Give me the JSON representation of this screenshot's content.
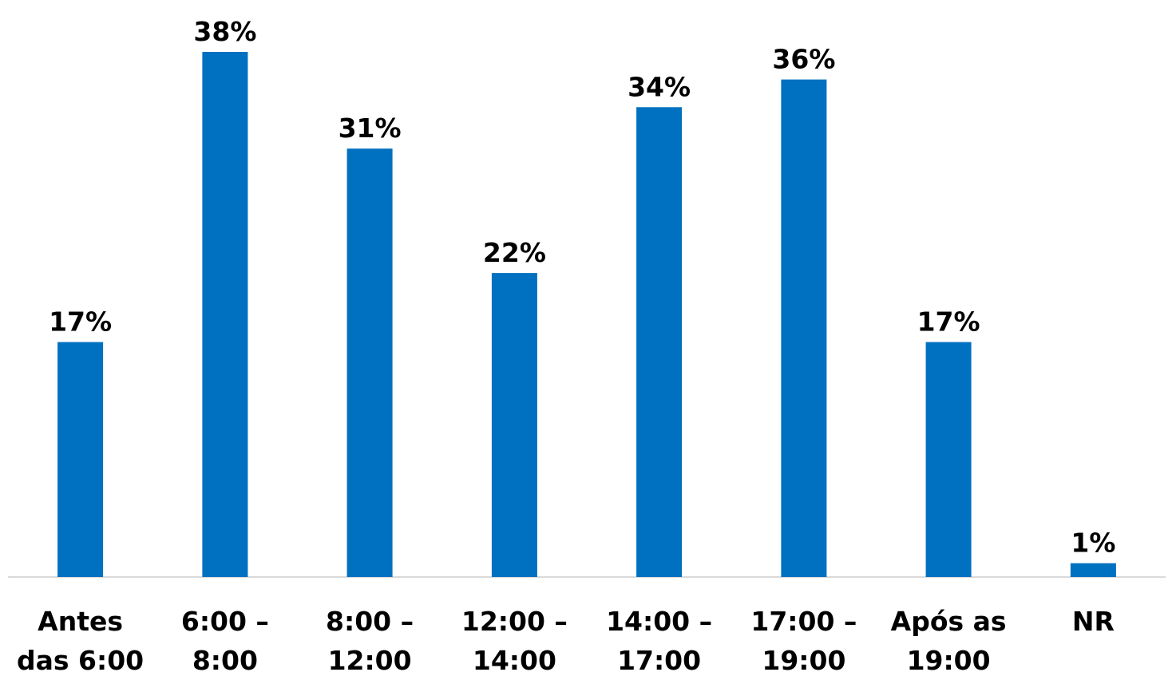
{
  "chart_data": {
    "type": "bar",
    "categories": [
      [
        "Antes",
        "das 6:00"
      ],
      [
        "6:00 –",
        "8:00"
      ],
      [
        "8:00 –",
        "12:00"
      ],
      [
        "12:00 –",
        "14:00"
      ],
      [
        "14:00 –",
        "17:00"
      ],
      [
        "17:00 –",
        "19:00"
      ],
      [
        "Após as",
        "19:00"
      ],
      [
        "NR"
      ]
    ],
    "values": [
      17,
      38,
      31,
      22,
      34,
      36,
      17,
      1
    ],
    "value_labels": [
      "17%",
      "38%",
      "31%",
      "22%",
      "34%",
      "36%",
      "17%",
      "1%"
    ],
    "unit": "%",
    "ylim": [
      0,
      38
    ],
    "grid": false,
    "legend": "none",
    "bar_color": "#0070C0",
    "axis_color": "#D9D9D9"
  }
}
